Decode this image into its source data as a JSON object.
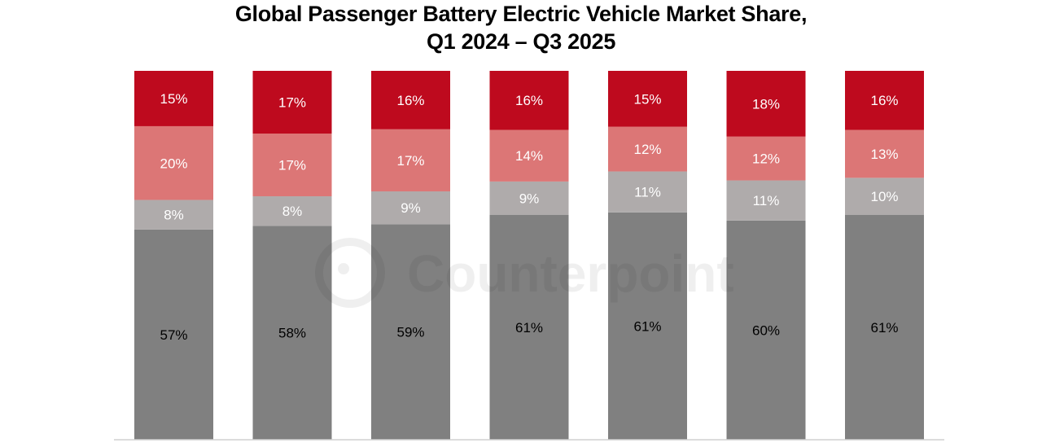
{
  "chart_data": {
    "type": "bar",
    "stacked": true,
    "title_lines": [
      "Global Passenger Battery Electric Vehicle Market Share,",
      "Q1 2024 – Q3 2025"
    ],
    "xlabel": "",
    "ylabel": "",
    "ylim": [
      0,
      100
    ],
    "grid": false,
    "legend": "none",
    "categories": [
      "",
      "",
      "",
      "",
      "",
      "",
      ""
    ],
    "series": [
      {
        "name": "segment-1",
        "color": "#808080",
        "label_color": "#000000",
        "values": [
          57,
          58,
          59,
          61,
          61,
          60,
          61
        ],
        "labels": [
          "57%",
          "58%",
          "59%",
          "61%",
          "61%",
          "60%",
          "61%"
        ]
      },
      {
        "name": "segment-2",
        "color": "#AFABAB",
        "label_color": "#ffffff",
        "values": [
          8,
          8,
          9,
          9,
          11,
          11,
          10
        ],
        "labels": [
          "8%",
          "8%",
          "9%",
          "9%",
          "11%",
          "11%",
          "10%"
        ]
      },
      {
        "name": "segment-3",
        "color": "#DC7676",
        "label_color": "#ffffff",
        "values": [
          20,
          17,
          17,
          14,
          12,
          12,
          13
        ],
        "labels": [
          "20%",
          "17%",
          "17%",
          "14%",
          "12%",
          "12%",
          "13%"
        ]
      },
      {
        "name": "segment-4",
        "color": "#BE0A1E",
        "label_color": "#ffffff",
        "values": [
          15,
          17,
          16,
          16,
          15,
          18,
          16
        ],
        "labels": [
          "15%",
          "17%",
          "16%",
          "16%",
          "15%",
          "18%",
          "16%"
        ]
      }
    ]
  },
  "watermark": {
    "text": "Counterpoint"
  }
}
